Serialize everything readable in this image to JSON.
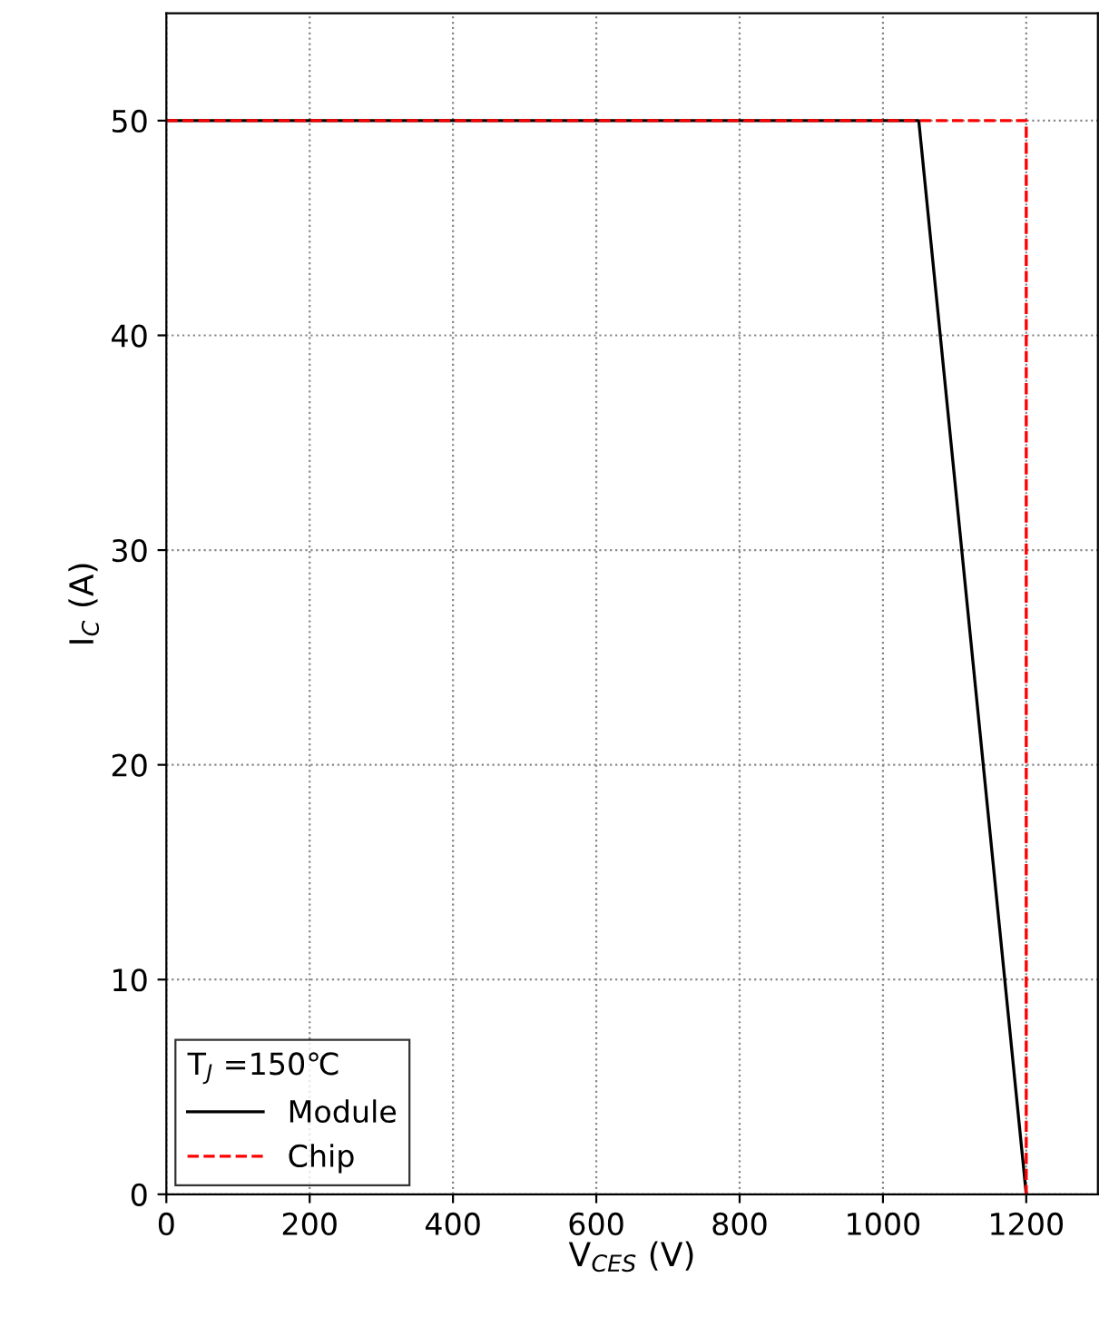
{
  "chart_data": {
    "type": "line",
    "xlabel": "V$_{CES}$ (V)",
    "ylabel": "I$_{C}$ (A)",
    "legend_title": "T$_{J}$ =150℃",
    "xlim": [
      0,
      1300
    ],
    "xticks": [
      0,
      200,
      400,
      600,
      800,
      1000,
      1200
    ],
    "ylim": [
      0,
      55
    ],
    "yticks": [
      0,
      10,
      20,
      30,
      40,
      50
    ],
    "grid": true,
    "legend": "bottom left",
    "marker": "none",
    "series": [
      {
        "name": "Module",
        "color": "#000000",
        "line_style": "solid",
        "x": [
          0,
          1050,
          1200
        ],
        "values": [
          50,
          50,
          0
        ]
      },
      {
        "name": "Chip",
        "color": "#ff0000",
        "line_style": "dashed",
        "x": [
          0,
          1200,
          1200
        ],
        "values": [
          50,
          50,
          0
        ]
      }
    ]
  }
}
